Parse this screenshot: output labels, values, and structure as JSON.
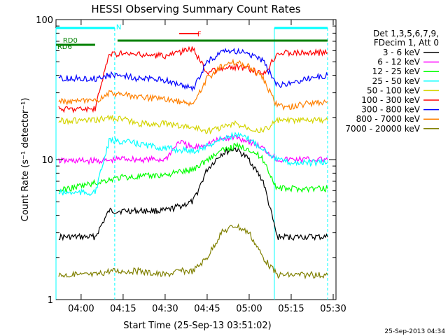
{
  "chart_data": {
    "type": "line",
    "title": "HESSI Observing Summary Count Rates",
    "xlabel": "Start Time (25-Sep-13 03:51:02)",
    "ylabel": "Count Rate (s⁻¹ detector⁻¹)",
    "y_scale": "log",
    "ylim": [
      1,
      100
    ],
    "xlim": [
      "03:51:02",
      "05:31:00"
    ],
    "x_ticks": [
      "04:00",
      "04:15",
      "04:30",
      "04:45",
      "05:00",
      "05:15",
      "05:30"
    ],
    "y_ticks": [
      "1",
      "10",
      "100"
    ],
    "grid": false,
    "legend_position": "right",
    "legend_header": [
      "Det 1,3,5,6,7,9,",
      "FDecim 1, Att 0"
    ],
    "timestamp": "25-Sep-2013 04:34",
    "annotations": [
      {
        "text": "N",
        "x": "04:12"
      },
      {
        "text": "F",
        "x": "04:41"
      },
      {
        "text": "RD0",
        "x": "03:53"
      },
      {
        "text": "RD6",
        "x": "03:51"
      }
    ],
    "series": [
      {
        "name": "3 - 6 keV",
        "color": "#000000",
        "x": [
          "03:52",
          "04:05",
          "04:10",
          "04:15",
          "04:20",
          "04:30",
          "04:40",
          "04:45",
          "04:50",
          "04:55",
          "05:00",
          "05:05",
          "05:10",
          "05:15",
          "05:20",
          "05:28"
        ],
        "values": [
          2.8,
          2.8,
          4.3,
          4.3,
          4.3,
          4.3,
          5.0,
          8.5,
          11,
          12,
          10,
          7,
          2.8,
          2.8,
          2.8,
          2.8
        ]
      },
      {
        "name": "6 - 12 keV",
        "color": "#ff00ff",
        "x": [
          "03:52",
          "04:05",
          "04:10",
          "04:15",
          "04:20",
          "04:30",
          "04:35",
          "04:40",
          "04:45",
          "04:50",
          "04:55",
          "05:00",
          "05:05",
          "05:10",
          "05:15",
          "05:20",
          "05:28"
        ],
        "values": [
          9.8,
          9.8,
          9.8,
          10.2,
          10,
          10,
          13.5,
          12,
          13,
          14,
          14.5,
          13.5,
          12,
          10,
          10,
          10,
          10
        ]
      },
      {
        "name": "12 - 25 keV",
        "color": "#00ff00",
        "x": [
          "03:52",
          "04:05",
          "04:10",
          "04:15",
          "04:20",
          "04:30",
          "04:40",
          "04:45",
          "04:50",
          "04:55",
          "05:00",
          "05:05",
          "05:10",
          "05:15",
          "05:20",
          "05:28"
        ],
        "values": [
          6,
          6.8,
          7.2,
          7.5,
          7.5,
          7.8,
          8.5,
          10,
          11.5,
          12.5,
          12,
          10,
          6.2,
          6.2,
          6.2,
          6.2
        ]
      },
      {
        "name": "25 - 50 keV",
        "color": "#00ffff",
        "x": [
          "03:52",
          "04:05",
          "04:10",
          "04:15",
          "04:20",
          "04:30",
          "04:40",
          "04:45",
          "04:50",
          "04:55",
          "05:00",
          "05:05",
          "05:10",
          "05:15",
          "05:20",
          "05:28"
        ],
        "values": [
          5.8,
          5.8,
          13.5,
          13.5,
          13,
          12,
          11.5,
          12.5,
          14,
          15,
          14,
          12,
          10,
          9.5,
          9.5,
          9.5
        ]
      },
      {
        "name": "50 - 100 keV",
        "color": "#d4d400",
        "x": [
          "03:52",
          "04:05",
          "04:10",
          "04:15",
          "04:20",
          "04:30",
          "04:40",
          "04:45",
          "04:50",
          "04:55",
          "05:00",
          "05:05",
          "05:10",
          "05:15",
          "05:20",
          "05:28"
        ],
        "values": [
          19,
          19,
          20,
          19.5,
          18,
          18,
          17,
          16,
          17,
          18,
          17,
          16,
          19,
          19,
          19,
          19
        ]
      },
      {
        "name": "100 - 300 keV",
        "color": "#ff0000",
        "x": [
          "03:52",
          "04:05",
          "04:10",
          "04:15",
          "04:20",
          "04:30",
          "04:40",
          "04:45",
          "04:50",
          "04:55",
          "05:00",
          "05:05",
          "05:10",
          "05:15",
          "05:20",
          "05:28"
        ],
        "values": [
          23,
          23,
          57,
          57,
          56,
          55,
          62,
          42,
          44,
          46,
          44,
          40,
          58,
          58,
          58,
          58
        ]
      },
      {
        "name": "300 - 800 keV",
        "color": "#0000ff",
        "x": [
          "03:52",
          "04:05",
          "04:10",
          "04:15",
          "04:20",
          "04:30",
          "04:40",
          "04:45",
          "04:50",
          "04:55",
          "05:00",
          "05:05",
          "05:10",
          "05:15",
          "05:20",
          "05:28"
        ],
        "values": [
          38,
          38,
          40,
          40,
          38,
          37,
          32,
          50,
          58,
          60,
          57,
          50,
          34,
          35,
          38,
          40
        ]
      },
      {
        "name": "800 - 7000 keV",
        "color": "#ff8000",
        "x": [
          "03:52",
          "04:05",
          "04:10",
          "04:15",
          "04:20",
          "04:30",
          "04:40",
          "04:45",
          "04:50",
          "04:55",
          "05:00",
          "05:05",
          "05:10",
          "05:15",
          "05:20",
          "05:28"
        ],
        "values": [
          26,
          26,
          30,
          29,
          28,
          27,
          25,
          38,
          46,
          50,
          46,
          38,
          24,
          24,
          25,
          26
        ]
      },
      {
        "name": "7000 - 20000 keV",
        "color": "#808000",
        "x": [
          "03:52",
          "04:05",
          "04:10",
          "04:15",
          "04:20",
          "04:30",
          "04:35",
          "04:40",
          "04:45",
          "04:50",
          "04:55",
          "05:00",
          "05:05",
          "05:10",
          "05:15",
          "05:20",
          "05:28"
        ],
        "values": [
          1.5,
          1.5,
          1.6,
          1.6,
          1.6,
          1.5,
          1.6,
          1.6,
          2.0,
          3.0,
          3.4,
          3.0,
          2.0,
          1.5,
          1.5,
          1.5,
          1.5
        ]
      }
    ]
  }
}
